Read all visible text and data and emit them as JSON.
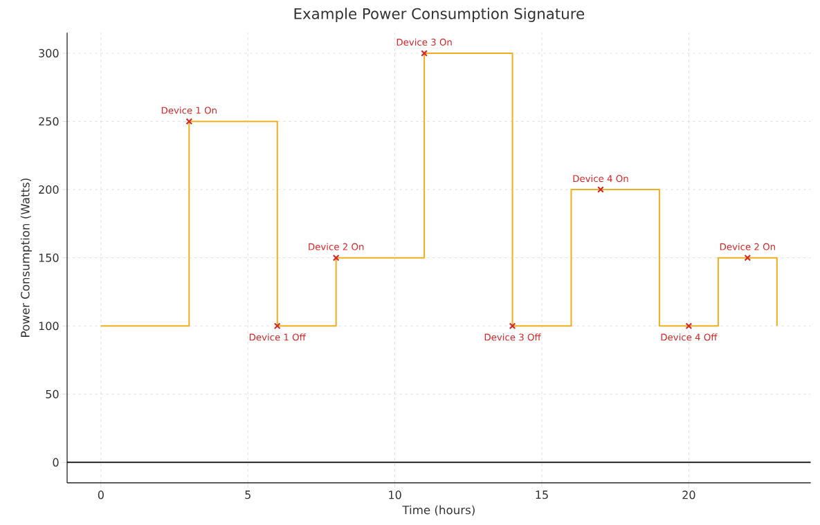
{
  "chart_data": {
    "type": "step",
    "title": "Example Power Consumption Signature",
    "xlabel": "Time (hours)",
    "ylabel": "Power Consumption (Watts)",
    "series": [
      {
        "color": "#f0ad1c",
        "x": [
          0,
          3,
          6,
          8,
          11,
          14,
          16,
          19,
          21,
          23
        ],
        "values": [
          100,
          250,
          100,
          150,
          300,
          100,
          200,
          100,
          150,
          100
        ]
      },
      {
        "type": "scatter",
        "color": "#d62728",
        "marker": "cross",
        "x": [
          3,
          6,
          8,
          11,
          14,
          17,
          20,
          22
        ],
        "values": [
          250,
          100,
          150,
          300,
          100,
          200,
          100,
          150
        ]
      }
    ],
    "annotations": [
      {
        "text": "Device 1 On",
        "x": 3,
        "y": 250
      },
      {
        "text": "Device 1 Off",
        "x": 6,
        "y": 100
      },
      {
        "text": "Device 2 On",
        "x": 8,
        "y": 150
      },
      {
        "text": "Device 3 On",
        "x": 11,
        "y": 300
      },
      {
        "text": "Device 3 Off",
        "x": 14,
        "y": 100
      },
      {
        "text": "Device 4 On",
        "x": 17,
        "y": 200
      },
      {
        "text": "Device 4 Off",
        "x": 20,
        "y": 100
      },
      {
        "text": "Device 2 On",
        "x": 22,
        "y": 150
      }
    ],
    "ref_lines": [
      {
        "axis": "y",
        "value": 0,
        "color": "#000000"
      }
    ],
    "xlim": [
      -1.15,
      24.15
    ],
    "ylim": [
      -15,
      315
    ],
    "xticks": [
      0,
      5,
      10,
      15,
      20
    ],
    "yticks": [
      0,
      50,
      100,
      150,
      200,
      250,
      300
    ],
    "grid": true
  }
}
